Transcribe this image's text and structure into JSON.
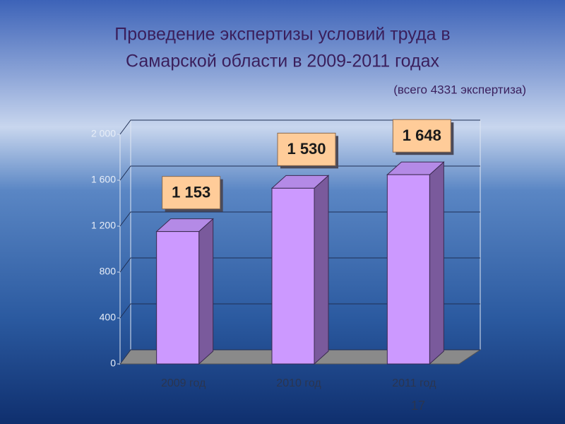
{
  "slide_number": "17",
  "chart_data": {
    "type": "bar3d",
    "title": [
      "Проведение экспертизы условий труда в",
      "Самарской области в 2009-2011 годах"
    ],
    "subtitle": "(всего 4331 экспертиза)",
    "categories": [
      "2009 год",
      "2010 год",
      "2011 год"
    ],
    "values": [
      1153,
      1530,
      1648
    ],
    "value_labels": [
      "1 153",
      "1 530",
      "1 648"
    ],
    "color": "#cc99ff",
    "ylim": [
      0,
      2000
    ],
    "yticks": [
      0,
      400,
      800,
      {
        "value": 1200,
        "label": "1 200"
      },
      {
        "value": 1600,
        "label": "1 600"
      },
      {
        "value": 2000,
        "label": "2 000"
      }
    ],
    "grid": true
  }
}
